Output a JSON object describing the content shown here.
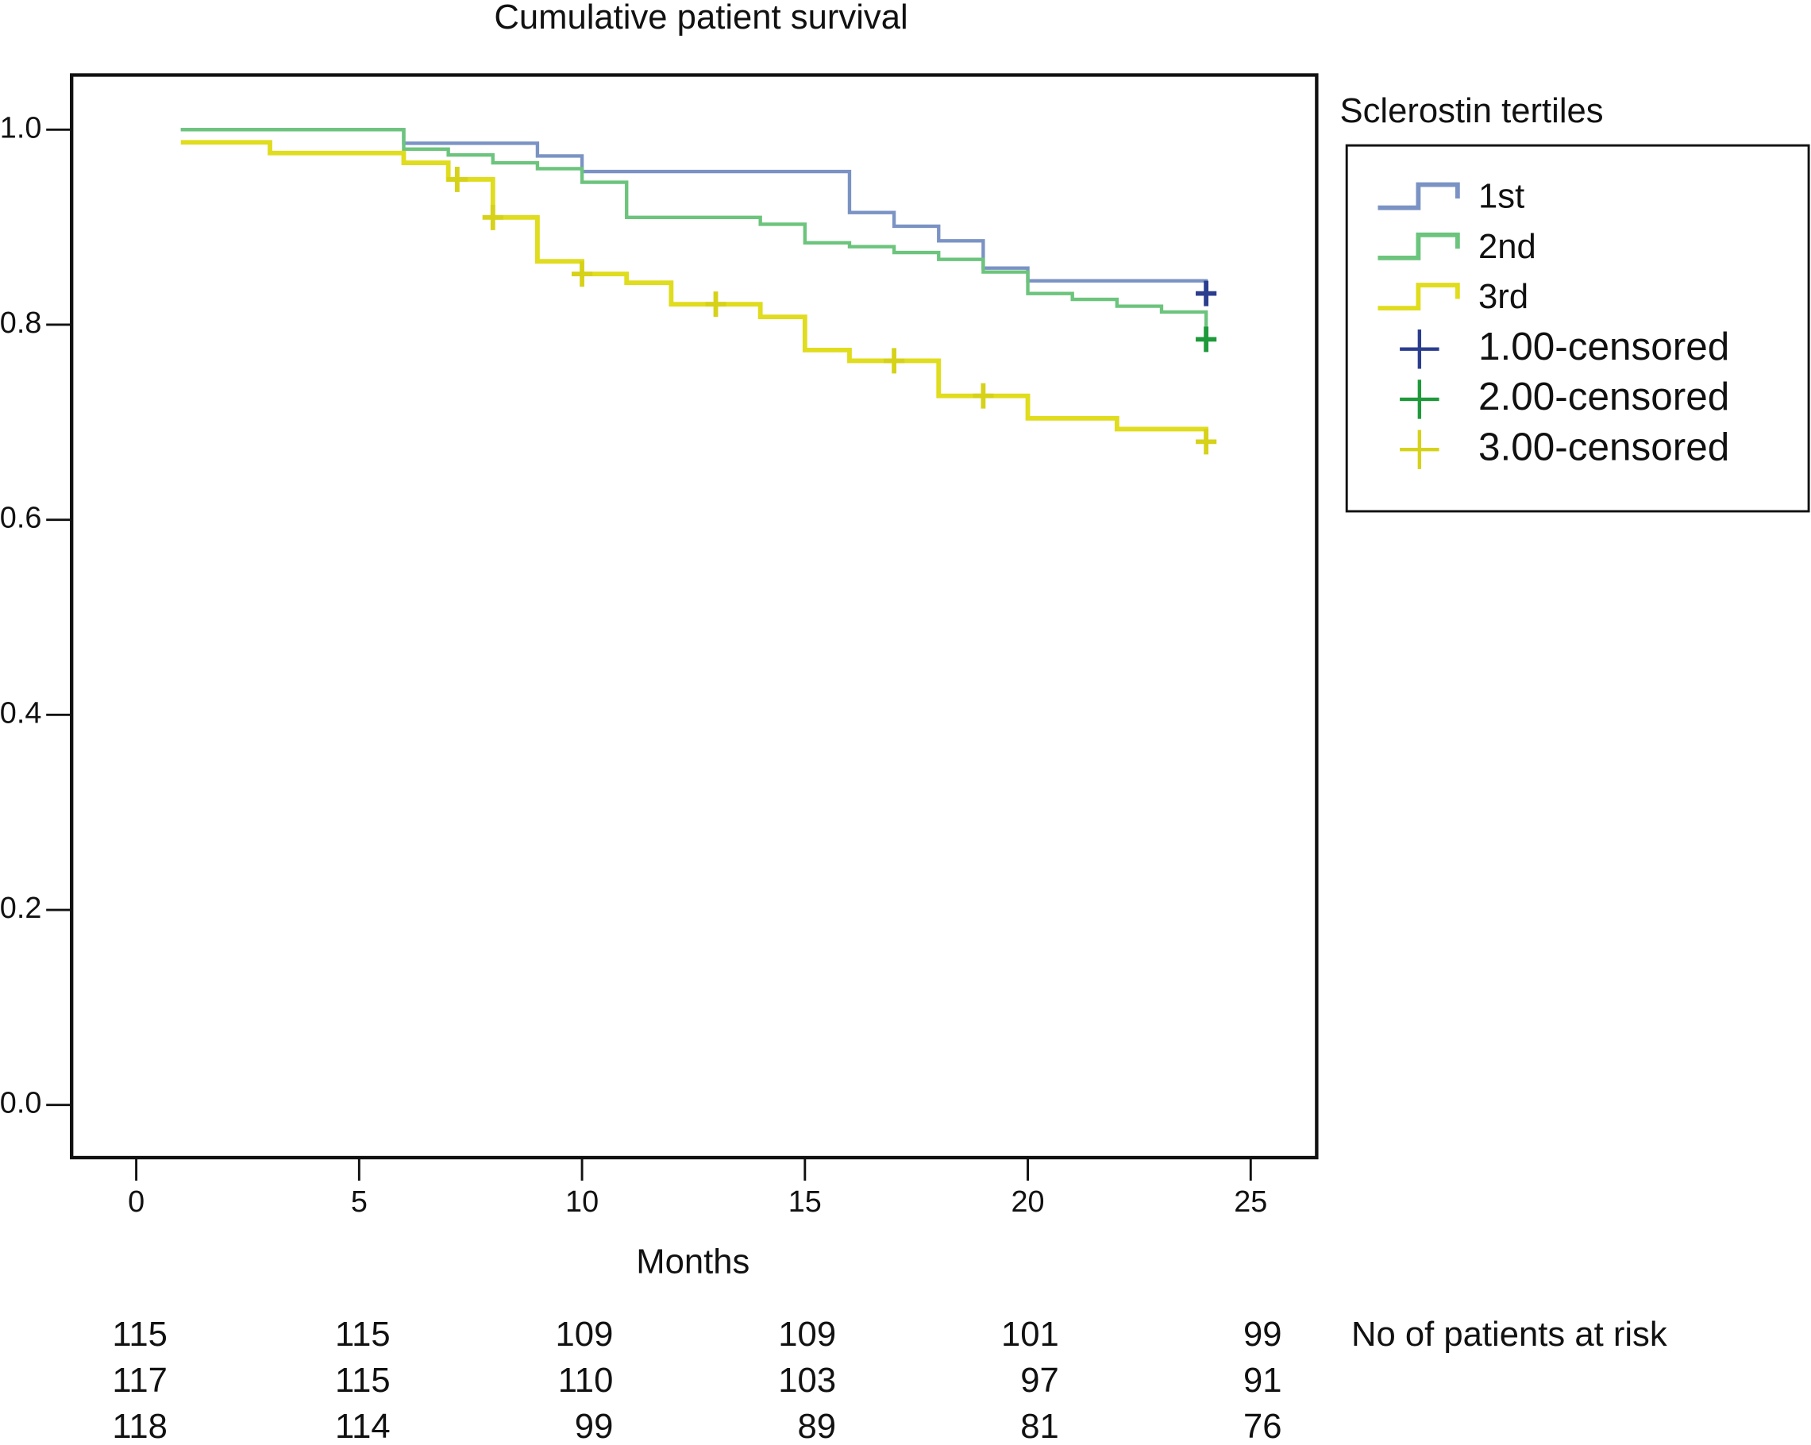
{
  "chart_data": {
    "type": "kaplan-meier",
    "title": "Cumulative patient survival",
    "x_label": "Months",
    "legend_title": "Sclerostin tertiles",
    "legend_position": "right",
    "xlim": [
      -1.45,
      26.48
    ],
    "ylim": [
      -0.054,
      1.056
    ],
    "xticks": [
      0,
      5,
      10,
      15,
      20,
      25
    ],
    "yticks": [
      {
        "value": 0,
        "label": "0.0"
      },
      {
        "value": 0.2,
        "label": "0.2"
      },
      {
        "value": 0.4,
        "label": "0.4"
      },
      {
        "value": 0.6,
        "label": "0.6"
      },
      {
        "value": 0.8,
        "label": "0.8"
      },
      {
        "value": 1,
        "label": "1.0"
      }
    ],
    "series": [
      {
        "name": "1st",
        "color": "#7b93c4",
        "mark": "step",
        "x": [
          1,
          6,
          9,
          10,
          16,
          17,
          18,
          19,
          20,
          24
        ],
        "values": [
          1.0,
          0.986,
          0.973,
          0.957,
          0.915,
          0.901,
          0.886,
          0.858,
          0.845,
          0.832
        ]
      },
      {
        "name": "2nd",
        "color": "#6cc47d",
        "mark": "step",
        "x": [
          1,
          6,
          7,
          8,
          9,
          10,
          11,
          14,
          15,
          16,
          17,
          18,
          19,
          20,
          21,
          22,
          23,
          24
        ],
        "values": [
          1.0,
          0.98,
          0.974,
          0.966,
          0.96,
          0.946,
          0.91,
          0.903,
          0.884,
          0.88,
          0.874,
          0.867,
          0.854,
          0.832,
          0.826,
          0.819,
          0.813,
          0.785
        ]
      },
      {
        "name": "3rd",
        "color": "#e0dc1e",
        "mark": "step",
        "x": [
          1,
          3,
          6,
          7,
          8,
          9,
          10,
          11,
          12,
          14,
          15,
          16,
          18,
          20,
          22,
          24
        ],
        "values": [
          0.987,
          0.976,
          0.966,
          0.949,
          0.91,
          0.865,
          0.852,
          0.843,
          0.821,
          0.808,
          0.774,
          0.763,
          0.727,
          0.704,
          0.693,
          0.68
        ]
      },
      {
        "name": "1.00-censored",
        "color": "#2a3d8f",
        "mark": "plus",
        "x": [
          24
        ],
        "values": [
          0.832
        ]
      },
      {
        "name": "2.00-censored",
        "color": "#1e9a3a",
        "mark": "plus",
        "x": [
          24
        ],
        "values": [
          0.785
        ]
      },
      {
        "name": "3.00-censored",
        "color": "#d6d21a",
        "mark": "plus",
        "x": [
          7.2,
          8,
          10,
          13,
          17,
          19,
          24
        ],
        "values": [
          0.949,
          0.91,
          0.852,
          0.821,
          0.763,
          0.727,
          0.68
        ]
      }
    ],
    "risk_table": {
      "label": "No of patients at risk",
      "rows": [
        [
          115,
          115,
          109,
          109,
          101,
          99
        ],
        [
          117,
          115,
          110,
          103,
          97,
          91
        ],
        [
          118,
          114,
          99,
          89,
          81,
          76
        ]
      ]
    }
  }
}
